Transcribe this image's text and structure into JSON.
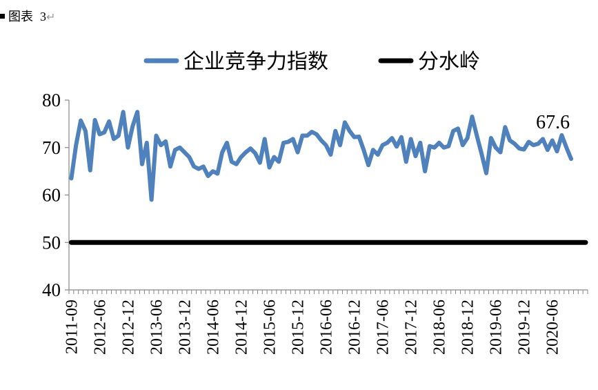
{
  "figure_caption": {
    "label": "图表",
    "number": "3",
    "return_mark": "↵"
  },
  "chart_data": {
    "type": "line",
    "title": "",
    "xlabel": "",
    "ylabel": "",
    "ylim": [
      40,
      80
    ],
    "yticks": [
      40,
      50,
      60,
      70,
      80
    ],
    "legend_position": "top",
    "grid": false,
    "x_start": "2011-09",
    "x_tick_labels": [
      "2011-09",
      "2012-06",
      "2012-12",
      "2013-06",
      "2013-12",
      "2014-06",
      "2014-12",
      "2015-06",
      "2015-12",
      "2016-06",
      "2016-12",
      "2017-06",
      "2017-12",
      "2018-06",
      "2018-12",
      "2019-06",
      "2019-12",
      "2020-06"
    ],
    "x_tick_label_every_months": 6,
    "series": [
      {
        "name": "企业竞争力指数",
        "color": "#4F81BD",
        "values": [
          63.5,
          70.5,
          75.7,
          73.5,
          65.2,
          75.8,
          72.8,
          73.2,
          75.5,
          71.8,
          72.5,
          77.5,
          70.0,
          74.5,
          77.5,
          66.5,
          71.0,
          59.0,
          72.5,
          70.5,
          71.3,
          66.0,
          69.5,
          70.0,
          69.0,
          68.0,
          66.0,
          65.5,
          66.0,
          64.0,
          65.0,
          64.5,
          69.0,
          71.0,
          67.0,
          66.5,
          68.0,
          69.0,
          69.8,
          68.8,
          66.8,
          71.8,
          65.8,
          68.0,
          67.0,
          71.0,
          71.2,
          71.8,
          69.0,
          72.5,
          72.5,
          73.3,
          72.8,
          71.5,
          70.5,
          68.5,
          73.5,
          70.5,
          75.3,
          73.5,
          72.2,
          72.3,
          69.5,
          66.3,
          69.5,
          68.5,
          70.5,
          71.0,
          72.0,
          70.2,
          72.2,
          67.0,
          71.8,
          68.2,
          71.0,
          65.0,
          70.3,
          70.0,
          71.0,
          70.0,
          70.3,
          73.5,
          74.0,
          70.5,
          72.0,
          76.5,
          72.5,
          68.7,
          64.6,
          72.0,
          70.0,
          69.0,
          74.3,
          71.5,
          70.8,
          69.8,
          69.6,
          71.2,
          70.5,
          70.8,
          71.8,
          69.5,
          71.5,
          69.2,
          72.6,
          70.0,
          67.6
        ]
      },
      {
        "name": "分水岭",
        "color": "#000000",
        "constant_value": 50
      }
    ],
    "annotations": [
      {
        "text": "67.6",
        "series": "企业竞争力指数",
        "point": "last"
      }
    ]
  }
}
